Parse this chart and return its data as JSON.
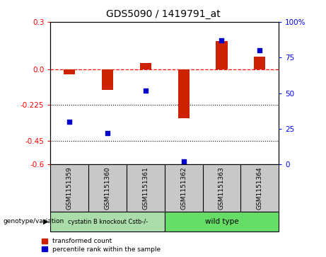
{
  "title": "GDS5090 / 1419791_at",
  "samples": [
    "GSM1151359",
    "GSM1151360",
    "GSM1151361",
    "GSM1151362",
    "GSM1151363",
    "GSM1151364"
  ],
  "red_values": [
    -0.03,
    -0.13,
    0.04,
    -0.31,
    0.18,
    0.08
  ],
  "blue_pct": [
    30,
    22,
    52,
    2,
    87,
    80
  ],
  "group1_label": "cystatin B knockout Cstb-/-",
  "group2_label": "wild type",
  "group1_color": "#aaddaa",
  "group2_color": "#66dd66",
  "group_label": "genotype/variation",
  "ylim_left": [
    -0.6,
    0.3
  ],
  "ylim_right": [
    0,
    100
  ],
  "yticks_left": [
    0.3,
    0.0,
    -0.225,
    -0.45,
    -0.6
  ],
  "yticks_right": [
    100,
    75,
    50,
    25,
    0
  ],
  "dotted_lines": [
    -0.225,
    -0.45
  ],
  "red_color": "#CC2200",
  "blue_color": "#0000CC",
  "sample_bg": "#C8C8C8",
  "legend_red": "transformed count",
  "legend_blue": "percentile rank within the sample"
}
